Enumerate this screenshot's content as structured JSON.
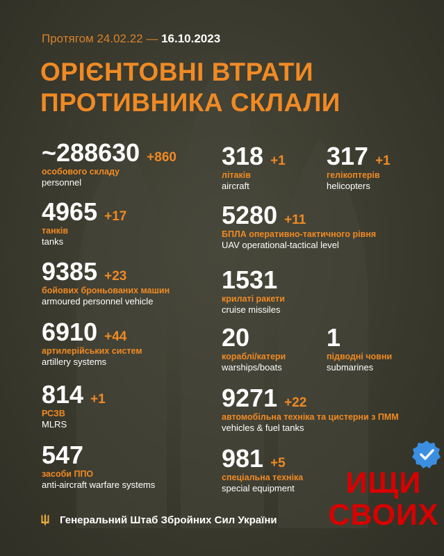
{
  "header": {
    "period_prefix": "Протягом 24.02.22 —",
    "period_date": "16.10.2023",
    "title_line1": "ОРІЄНТОВНІ ВТРАТИ",
    "title_line2": "ПРОТИВНИКА СКЛАЛИ"
  },
  "stats": {
    "personnel": {
      "value": "~288630",
      "delta": "+860",
      "ua": "особового складу",
      "en": "personnel"
    },
    "aircraft": {
      "value": "318",
      "delta": "+1",
      "ua": "літаків",
      "en": "aircraft"
    },
    "helicopters": {
      "value": "317",
      "delta": "+1",
      "ua": "гелікоптерів",
      "en": "helicopters"
    },
    "tanks": {
      "value": "4965",
      "delta": "+17",
      "ua": "танків",
      "en": "tanks"
    },
    "uav": {
      "value": "5280",
      "delta": "+11",
      "ua": "БПЛА оперативно-тактичного рівня",
      "en": "UAV operational-tactical level"
    },
    "apv": {
      "value": "9385",
      "delta": "+23",
      "ua": "бойових броньованих машин",
      "en": "armoured personnel vehicle"
    },
    "cruise_missiles": {
      "value": "1531",
      "ua": "крилаті ракети",
      "en": "cruise missiles"
    },
    "artillery": {
      "value": "6910",
      "delta": "+44",
      "ua": "артилерійських систем",
      "en": "artillery systems"
    },
    "warships": {
      "value": "20",
      "ua": "кораблі/катери",
      "en": "warships/boats"
    },
    "submarines": {
      "value": "1",
      "ua": "підводні човни",
      "en": "submarines"
    },
    "mlrs": {
      "value": "814",
      "delta": "+1",
      "ua": "РСЗВ",
      "en": "MLRS"
    },
    "vehicles": {
      "value": "9271",
      "delta": "+22",
      "ua": "автомобільна техніка та цистерни з ПММ",
      "en": "vehicles & fuel tanks"
    },
    "air_defense": {
      "value": "547",
      "ua": "засоби ППО",
      "en": "anti-aircraft warfare systems"
    },
    "special_equipment": {
      "value": "981",
      "delta": "+5",
      "ua": "спеціальна техніка",
      "en": "special equipment"
    }
  },
  "footer": {
    "text": "Генеральний Штаб Збройних Сил України",
    "icon": "trident-icon"
  },
  "overlay": {
    "line1": "ИЩИ",
    "line2": "СВОИХ",
    "badge_icon": "verified-badge-icon"
  },
  "colors": {
    "background": "#3a3a2e",
    "accent": "#f08a24",
    "text": "#ffffff",
    "stamp": "#d90000",
    "badge": "#3a8fe0"
  }
}
